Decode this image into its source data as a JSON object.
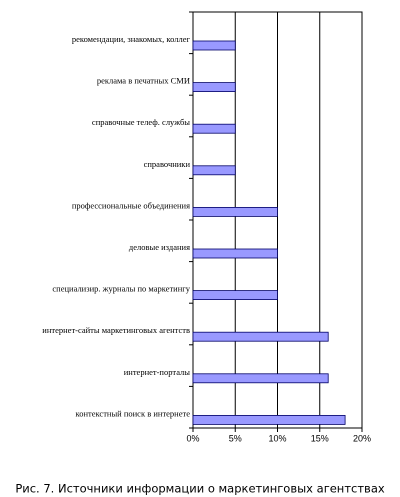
{
  "chart_data": {
    "type": "bar",
    "orientation": "horizontal",
    "caption": "Рис. 7. Источники информации о маркетинговых агентствах",
    "categories": [
      "рекомендации, знакомых, коллег",
      "реклама в печатных СМИ",
      "справочные телеф. службы",
      "справочники",
      "профессиональные объединения",
      "деловые издания",
      "специализир. журналы по маркетингу",
      "интернет-сайты маркетинговых агентств",
      "интернет-порталы",
      "контекстный поиск в интернете"
    ],
    "values": [
      5,
      5,
      5,
      5,
      10,
      10,
      10,
      16,
      16,
      18
    ],
    "color": "#9999ff",
    "xlim": [
      0,
      20
    ],
    "xticks": [
      {
        "value": 0,
        "label": "0%"
      },
      {
        "value": 5,
        "label": "5%"
      },
      {
        "value": 10,
        "label": "10%"
      },
      {
        "value": 15,
        "label": "15%"
      },
      {
        "value": 20,
        "label": "20%"
      }
    ],
    "grid": true
  }
}
